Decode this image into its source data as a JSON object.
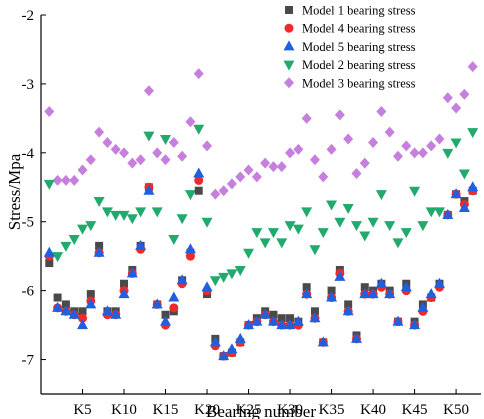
{
  "chart_data": {
    "type": "scatter",
    "title": "",
    "xlabel": "Bearing number",
    "ylabel": "Stress/Mpa",
    "xlim": [
      0,
      53
    ],
    "ylim": [
      -7.5,
      -2
    ],
    "x_ticks": [
      5,
      10,
      15,
      20,
      25,
      30,
      35,
      40,
      45,
      50
    ],
    "x_tick_labels": [
      "K5",
      "K10",
      "K15",
      "K20",
      "K25",
      "K30",
      "K35",
      "K40",
      "K45",
      "K50"
    ],
    "y_ticks": [
      -7,
      -6,
      -5,
      -4,
      -3,
      -2
    ],
    "y_tick_labels": [
      "-7",
      "-6",
      "-5",
      "-4",
      "-3",
      "-2"
    ],
    "legend_position": "top-right",
    "series": [
      {
        "name": "Model 1 bearing stress",
        "marker": "square",
        "color": "#4a4a4a",
        "x": [
          1,
          2,
          3,
          4,
          5,
          6,
          7,
          8,
          9,
          10,
          11,
          12,
          13,
          14,
          15,
          16,
          17,
          18,
          19,
          20,
          21,
          22,
          23,
          24,
          25,
          26,
          27,
          28,
          29,
          30,
          31,
          32,
          33,
          34,
          35,
          36,
          37,
          38,
          39,
          40,
          41,
          42,
          43,
          44,
          45,
          46,
          47,
          48,
          49,
          50,
          51,
          52
        ],
        "y": [
          -5.6,
          -6.1,
          -6.2,
          -6.3,
          -6.3,
          -6.05,
          -5.35,
          -6.3,
          -6.3,
          -5.9,
          -5.7,
          -5.35,
          -4.5,
          -6.2,
          -6.35,
          -6.3,
          -5.85,
          -5.45,
          -4.55,
          -6.05,
          -6.7,
          -6.95,
          -6.9,
          -6.75,
          -6.5,
          -6.4,
          -6.3,
          -6.35,
          -6.4,
          -6.4,
          -6.45,
          -5.95,
          -6.3,
          -6.75,
          -6.0,
          -5.7,
          -6.2,
          -6.65,
          -5.95,
          -6.0,
          -5.9,
          -6.0,
          -6.45,
          -5.9,
          -6.45,
          -6.2,
          -6.1,
          -5.9,
          -4.9,
          -4.6,
          -4.7,
          -4.55
        ]
      },
      {
        "name": "Model 4 bearing stress",
        "marker": "circle",
        "color": "#ee2a2a",
        "x": [
          1,
          2,
          3,
          4,
          5,
          6,
          7,
          8,
          9,
          10,
          11,
          12,
          13,
          14,
          15,
          16,
          17,
          18,
          19,
          20,
          21,
          22,
          23,
          24,
          25,
          26,
          27,
          28,
          29,
          30,
          31,
          32,
          33,
          34,
          35,
          36,
          37,
          38,
          39,
          40,
          41,
          42,
          43,
          44,
          45,
          46,
          47,
          48,
          49,
          50,
          51,
          52
        ],
        "y": [
          -5.5,
          -6.25,
          -6.3,
          -6.35,
          -6.4,
          -6.15,
          -5.45,
          -6.35,
          -6.35,
          -6.0,
          -5.75,
          -5.4,
          -4.5,
          -6.2,
          -6.5,
          -6.25,
          -5.9,
          -5.5,
          -4.4,
          -6.0,
          -6.8,
          -6.95,
          -6.9,
          -6.75,
          -6.5,
          -6.45,
          -6.35,
          -6.45,
          -6.5,
          -6.5,
          -6.5,
          -6.05,
          -6.4,
          -6.75,
          -6.1,
          -5.75,
          -6.3,
          -6.7,
          -6.05,
          -6.05,
          -5.95,
          -6.05,
          -6.45,
          -6.0,
          -6.5,
          -6.3,
          -6.1,
          -5.95,
          -4.9,
          -4.6,
          -4.75,
          -4.55
        ]
      },
      {
        "name": "Model 5 bearing stress",
        "marker": "triangle-up",
        "color": "#1f5fe0",
        "x": [
          1,
          2,
          3,
          4,
          5,
          6,
          7,
          8,
          9,
          10,
          11,
          12,
          13,
          14,
          15,
          16,
          17,
          18,
          19,
          20,
          21,
          22,
          23,
          24,
          25,
          26,
          27,
          28,
          29,
          30,
          31,
          32,
          33,
          34,
          35,
          36,
          37,
          38,
          39,
          40,
          41,
          42,
          43,
          44,
          45,
          46,
          47,
          48,
          49,
          50,
          51,
          52
        ],
        "y": [
          -5.45,
          -6.25,
          -6.3,
          -6.35,
          -6.5,
          -6.2,
          -5.45,
          -6.3,
          -6.35,
          -6.05,
          -5.75,
          -5.35,
          -4.55,
          -6.2,
          -6.45,
          -6.1,
          -5.85,
          -5.4,
          -4.3,
          -5.95,
          -6.75,
          -6.95,
          -6.85,
          -6.7,
          -6.5,
          -6.45,
          -6.35,
          -6.45,
          -6.5,
          -6.5,
          -6.45,
          -6.05,
          -6.4,
          -6.75,
          -6.1,
          -5.8,
          -6.3,
          -6.7,
          -6.05,
          -6.05,
          -5.9,
          -6.05,
          -6.45,
          -5.95,
          -6.5,
          -6.25,
          -6.05,
          -5.9,
          -4.9,
          -4.6,
          -4.8,
          -4.5
        ]
      },
      {
        "name": "Model 2 bearing stress",
        "marker": "triangle-down",
        "color": "#22aa6e",
        "x": [
          1,
          2,
          3,
          4,
          5,
          6,
          7,
          8,
          9,
          10,
          11,
          12,
          13,
          14,
          15,
          16,
          17,
          18,
          19,
          20,
          21,
          22,
          23,
          24,
          25,
          26,
          27,
          28,
          29,
          30,
          31,
          32,
          33,
          34,
          35,
          36,
          37,
          38,
          39,
          40,
          41,
          42,
          43,
          44,
          45,
          46,
          47,
          48,
          49,
          50,
          51,
          52
        ],
        "y": [
          -4.45,
          -5.5,
          -5.35,
          -5.25,
          -5.1,
          -5.05,
          -4.7,
          -4.85,
          -4.9,
          -4.9,
          -4.95,
          -4.85,
          -3.75,
          -4.85,
          -3.8,
          -5.25,
          -4.95,
          -4.6,
          -3.65,
          -5.0,
          -5.85,
          -5.8,
          -5.75,
          -5.7,
          -5.45,
          -5.15,
          -5.3,
          -5.15,
          -5.3,
          -5.05,
          -5.1,
          -4.85,
          -5.4,
          -5.15,
          -4.75,
          -5.0,
          -4.8,
          -5.05,
          -5.2,
          -5.0,
          -4.6,
          -5.05,
          -5.3,
          -5.15,
          -4.55,
          -5.05,
          -4.85,
          -4.85,
          -4.0,
          -3.85,
          -4.3,
          -3.7
        ]
      },
      {
        "name": "Model 3 bearing stress",
        "marker": "diamond",
        "color": "#c77fde",
        "x": [
          1,
          2,
          3,
          4,
          5,
          6,
          7,
          8,
          9,
          10,
          11,
          12,
          13,
          14,
          15,
          16,
          17,
          18,
          19,
          20,
          21,
          22,
          23,
          24,
          25,
          26,
          27,
          28,
          29,
          30,
          31,
          32,
          33,
          34,
          35,
          36,
          37,
          38,
          39,
          40,
          41,
          42,
          43,
          44,
          45,
          46,
          47,
          48,
          49,
          50,
          51,
          52
        ],
        "y": [
          -3.4,
          -4.4,
          -4.4,
          -4.4,
          -4.25,
          -4.1,
          -3.7,
          -3.85,
          -3.95,
          -4.0,
          -4.15,
          -4.1,
          -3.1,
          -4.0,
          -4.1,
          -3.85,
          -4.05,
          -3.55,
          -2.85,
          -3.9,
          -4.6,
          -4.55,
          -4.45,
          -4.35,
          -4.25,
          -4.35,
          -4.15,
          -4.2,
          -4.2,
          -4.0,
          -3.95,
          -3.5,
          -4.1,
          -4.35,
          -3.95,
          -3.45,
          -3.8,
          -4.3,
          -4.15,
          -3.85,
          -3.4,
          -3.7,
          -4.05,
          -3.9,
          -4.0,
          -4.0,
          -3.9,
          -3.8,
          -3.2,
          -3.35,
          -3.15,
          -2.75
        ]
      }
    ]
  }
}
